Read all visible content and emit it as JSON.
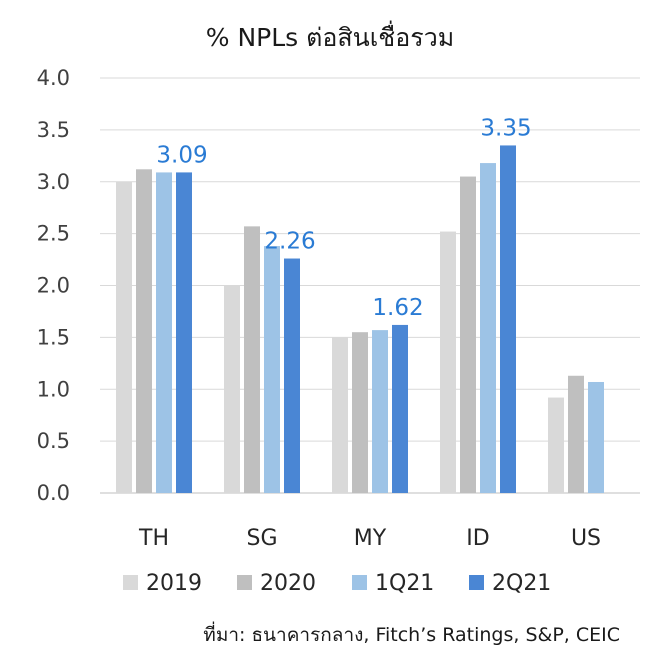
{
  "chart_data": {
    "type": "bar",
    "title": "% NPLs ต่อสินเชื่อรวม",
    "categories": [
      "TH",
      "SG",
      "MY",
      "ID",
      "US"
    ],
    "series": [
      {
        "name": "2019",
        "color": "#d9d9d9",
        "values": [
          3.0,
          2.0,
          1.5,
          2.52,
          0.92
        ]
      },
      {
        "name": "2020",
        "color": "#bfbfbf",
        "values": [
          3.12,
          2.57,
          1.55,
          3.05,
          1.13
        ]
      },
      {
        "name": "1Q21",
        "color": "#9dc3e6",
        "values": [
          3.09,
          2.38,
          1.57,
          3.18,
          1.07
        ]
      },
      {
        "name": "2Q21",
        "color": "#4a86d4",
        "values": [
          3.09,
          2.26,
          1.62,
          3.35,
          null
        ]
      }
    ],
    "data_labels": [
      {
        "category": "TH",
        "series": "2Q21",
        "text": "3.09"
      },
      {
        "category": "SG",
        "series": "2Q21",
        "text": "2.26"
      },
      {
        "category": "MY",
        "series": "2Q21",
        "text": "1.62"
      },
      {
        "category": "ID",
        "series": "2Q21",
        "text": "3.35"
      }
    ],
    "yticks": [
      "0.0",
      "0.5",
      "1.0",
      "1.5",
      "2.0",
      "2.5",
      "3.0",
      "3.5",
      "4.0"
    ],
    "ylim": [
      0,
      4
    ],
    "grid": true,
    "legend_position": "bottom",
    "source": "ที่มา: ธนาคารกลาง, Fitch’s Ratings, S&P, CEIC"
  }
}
